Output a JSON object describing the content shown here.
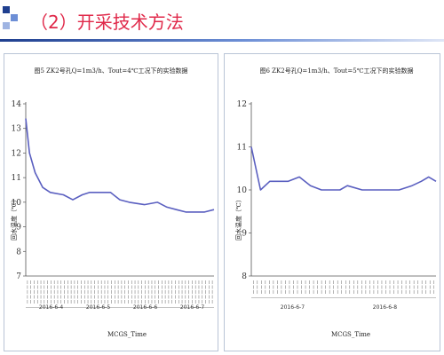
{
  "slide": {
    "title": "（2）开采技术方法",
    "accent_color": "#e0294a",
    "square_colors": [
      "#1f3f8f",
      "#6d8fd6",
      "#9fb4e2"
    ]
  },
  "chart_data": [
    {
      "type": "line",
      "title": "图5  ZK2号孔Q=1m3/h、Tout=4℃工况下的实验数据",
      "ylabel": "回水温度（℃）",
      "xlabel": "MCGS_Time",
      "ylim": [
        7,
        14
      ],
      "yticks": [
        7,
        8,
        9,
        10,
        11,
        12,
        13,
        14
      ],
      "date_labels": [
        "2016-6-4",
        "2016-6-5",
        "2016-6-6",
        "2016-6-7"
      ],
      "xlim": [
        0,
        1
      ],
      "series_color": "#5a5fc0",
      "series": [
        {
          "x": [
            0,
            0.02,
            0.05,
            0.09,
            0.13,
            0.2,
            0.25,
            0.3,
            0.34,
            0.38,
            0.45,
            0.5,
            0.55,
            0.63,
            0.7,
            0.75,
            0.8,
            0.85,
            0.9,
            0.95,
            1.0
          ],
          "values": [
            13.4,
            12.0,
            11.2,
            10.6,
            10.4,
            10.3,
            10.1,
            10.3,
            10.4,
            10.4,
            10.4,
            10.1,
            10.0,
            9.9,
            10.0,
            9.8,
            9.7,
            9.6,
            9.6,
            9.6,
            9.7
          ]
        }
      ]
    },
    {
      "type": "line",
      "title": "图6  ZK2号孔Q=1m3/h、Tout=5℃工况下的实验数据",
      "ylabel": "回水温度（℃）",
      "xlabel": "MCGS_Time",
      "ylim": [
        8,
        12
      ],
      "yticks": [
        8,
        9,
        10,
        11,
        12
      ],
      "date_labels": [
        "2016-6-7",
        "2016-6-8"
      ],
      "xlim": [
        0,
        1
      ],
      "series_color": "#5a5fc0",
      "series": [
        {
          "x": [
            0,
            0.05,
            0.1,
            0.15,
            0.2,
            0.26,
            0.32,
            0.38,
            0.44,
            0.48,
            0.52,
            0.6,
            0.7,
            0.8,
            0.87,
            0.92,
            0.96,
            1.0
          ],
          "values": [
            11.0,
            10.0,
            10.2,
            10.2,
            10.2,
            10.3,
            10.1,
            10.0,
            10.0,
            10.0,
            10.1,
            10.0,
            10.0,
            10.0,
            10.1,
            10.2,
            10.3,
            10.2
          ]
        }
      ]
    }
  ]
}
